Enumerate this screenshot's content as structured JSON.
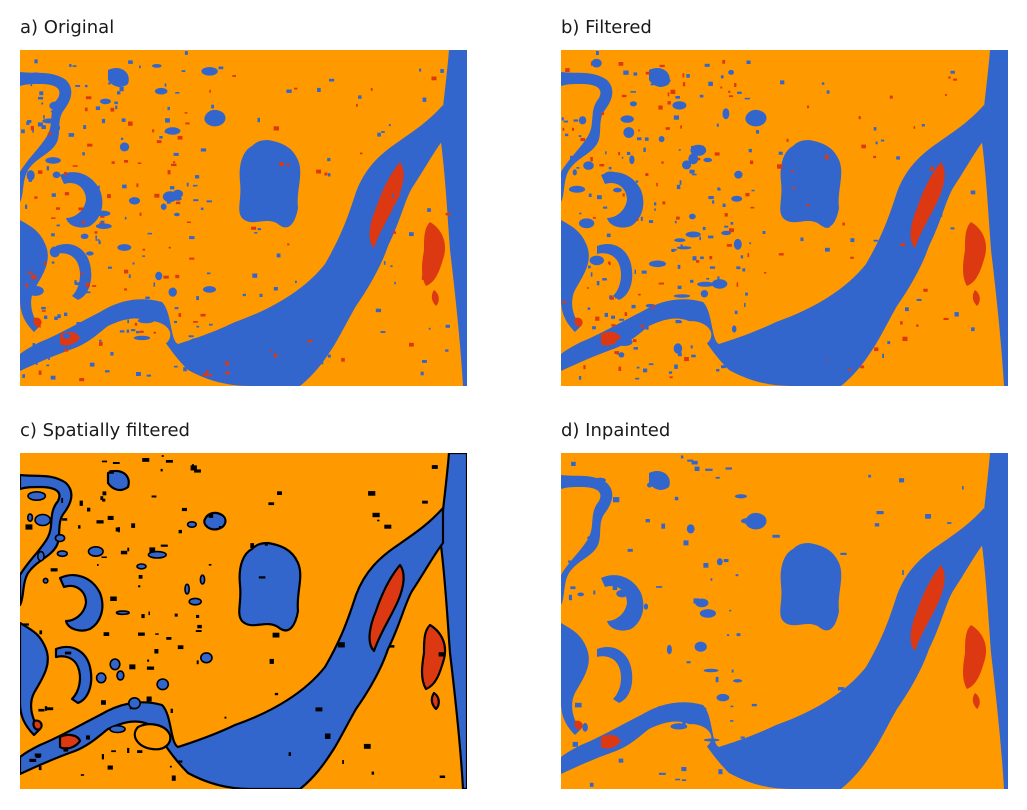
{
  "panels": [
    {
      "key": "original",
      "title": "a) Original",
      "outlined": false,
      "noisy": true
    },
    {
      "key": "filtered",
      "title": "b) Filtered",
      "outlined": false,
      "noisy": true
    },
    {
      "key": "spatial",
      "title": "c) Spatially filtered",
      "outlined": true,
      "noisy": false
    },
    {
      "key": "inpainted",
      "title": "d) Inpainted",
      "outlined": false,
      "noisy": false
    }
  ],
  "colors": {
    "land": "#FF9900",
    "water": "#3366CC",
    "red_class": "#DC3912",
    "outline": "#000000"
  }
}
